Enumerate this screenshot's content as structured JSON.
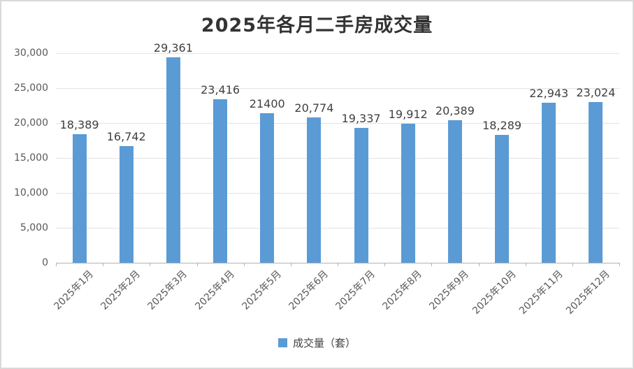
{
  "page": {
    "background": "#ffffff",
    "border_color": "#d9d9d9"
  },
  "chart_data": {
    "type": "bar",
    "title": "2025年各月二手房成交量",
    "categories": [
      "2025年1月",
      "2025年2月",
      "2025年3月",
      "2025年4月",
      "2025年5月",
      "2025年6月",
      "2025年7月",
      "2025年8月",
      "2025年9月",
      "2025年10月",
      "2025年11月",
      "2025年12月"
    ],
    "values": [
      18389,
      16742,
      29361,
      23416,
      21400,
      20774,
      19337,
      19912,
      20389,
      18289,
      22943,
      23024
    ],
    "data_labels": [
      "18,389",
      "16,742",
      "29,361",
      "23,416",
      "21400",
      "20,774",
      "19,337",
      "19,912",
      "20,389",
      "18,289",
      "22,943",
      "23,024"
    ],
    "xlabel": "",
    "ylabel": "",
    "y_axis": {
      "min": 0,
      "max": 30000,
      "tick_values": [
        0,
        5000,
        10000,
        15000,
        20000,
        25000,
        30000
      ],
      "tick_labels": [
        "0",
        "5,000",
        "10,000",
        "15,000",
        "20,000",
        "25,000",
        "30,000"
      ]
    },
    "grid": true,
    "legend": {
      "label": "成交量（套）",
      "position": "bottom"
    },
    "colors": {
      "bar": "#5B9BD5",
      "grid": "#E3E3E3",
      "axis": "#B3B3B3",
      "axis_text": "#595959",
      "data_label": "#404040",
      "title": "#333333",
      "legend_text": "#404040"
    }
  }
}
